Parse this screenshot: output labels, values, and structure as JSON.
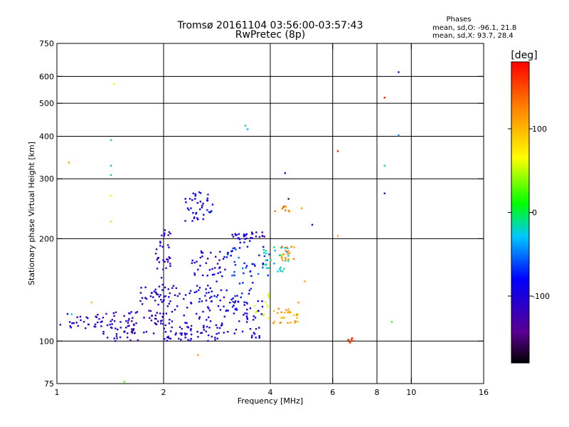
{
  "chart_data": {
    "type": "scatter",
    "title": "Tromsø 20161104 03:56:00-03:57:43",
    "subtitle": "RwPretec (8p)",
    "xlabel": "Frequency [MHz]",
    "ylabel": "Stationary phase Virtual Height [km]",
    "x_scale": "log",
    "y_scale": "log",
    "xlim": [
      1,
      16
    ],
    "ylim": [
      75,
      750
    ],
    "x_ticks": [
      1,
      2,
      4,
      6,
      8,
      10,
      16
    ],
    "x_tick_labels": [
      "1",
      "2",
      "4",
      "6",
      "8",
      "10",
      "16"
    ],
    "y_ticks": [
      75,
      100,
      200,
      300,
      400,
      500,
      600,
      750
    ],
    "y_tick_labels": [
      "75",
      "100",
      "200",
      "300",
      "400",
      "500",
      "600",
      "750"
    ],
    "x_gridlines": [
      2,
      4,
      6,
      8,
      10
    ],
    "y_gridlines": [
      100,
      200,
      300,
      400,
      500,
      600
    ],
    "grid": true,
    "stats": {
      "heading": "Phases",
      "line_o": "mean, sd,O: -96.1, 21.8",
      "line_x": "mean, sd,X:  93.7, 28.4"
    },
    "colorbar": {
      "unit_label": "[deg]",
      "range": [
        -180,
        180
      ],
      "ticks": [
        -100,
        0,
        100
      ],
      "tick_labels": [
        "-100",
        "0",
        "100"
      ],
      "placement": "right"
    },
    "clusters": [
      {
        "x": [
          1.02,
          1.35
        ],
        "y": [
          108,
          122
        ],
        "n": 30,
        "phase": -105
      },
      {
        "x": [
          1.35,
          1.7
        ],
        "y": [
          100,
          122
        ],
        "n": 45,
        "phase": -115
      },
      {
        "x": [
          1.55,
          2.0
        ],
        "y": [
          105,
          125
        ],
        "n": 35,
        "phase": -112
      },
      {
        "x": [
          2.0,
          2.9
        ],
        "y": [
          100,
          112
        ],
        "n": 55,
        "phase": -100
      },
      {
        "x": [
          2.9,
          3.8
        ],
        "y": [
          102,
          135
        ],
        "n": 50,
        "phase": -95
      },
      {
        "x": [
          1.9,
          2.8
        ],
        "y": [
          112,
          150
        ],
        "n": 55,
        "phase": -92
      },
      {
        "x": [
          2.6,
          3.6
        ],
        "y": [
          118,
          150
        ],
        "n": 40,
        "phase": -85
      },
      {
        "x": [
          1.7,
          2.1
        ],
        "y": [
          128,
          145
        ],
        "n": 30,
        "phase": -108
      },
      {
        "x": [
          1.9,
          2.1
        ],
        "y": [
          150,
          215
        ],
        "n": 35,
        "phase": -110
      },
      {
        "x": [
          2.4,
          3.0
        ],
        "y": [
          155,
          185
        ],
        "n": 35,
        "phase": -98
      },
      {
        "x": [
          3.0,
          4.0
        ],
        "y": [
          155,
          190
        ],
        "n": 40,
        "phase": -70
      },
      {
        "x": [
          3.1,
          3.5
        ],
        "y": [
          195,
          208
        ],
        "n": 20,
        "phase": -100
      },
      {
        "x": [
          2.3,
          2.75
        ],
        "y": [
          225,
          275
        ],
        "n": 40,
        "phase": -90
      },
      {
        "x": [
          3.5,
          3.9
        ],
        "y": [
          200,
          210
        ],
        "n": 12,
        "phase": -110
      },
      {
        "x": [
          3.8,
          4.5
        ],
        "y": [
          160,
          190
        ],
        "n": 30,
        "phase": -20
      },
      {
        "x": [
          4.0,
          4.8
        ],
        "y": [
          113,
          125
        ],
        "n": 30,
        "phase": 110
      },
      {
        "x": [
          4.3,
          4.7
        ],
        "y": [
          170,
          190
        ],
        "n": 18,
        "phase": 120
      },
      {
        "x": [
          4.1,
          4.6
        ],
        "y": [
          240,
          250
        ],
        "n": 10,
        "phase": 120
      },
      {
        "x": [
          3.6,
          4.0
        ],
        "y": [
          115,
          140
        ],
        "n": 12,
        "phase": 60
      },
      {
        "x": [
          6.5,
          6.9
        ],
        "y": [
          99,
          103
        ],
        "n": 8,
        "phase": 160
      }
    ],
    "outliers": [
      {
        "x": 1.45,
        "y": 570,
        "phase": 70
      },
      {
        "x": 1.42,
        "y": 390,
        "phase": -10
      },
      {
        "x": 1.42,
        "y": 328,
        "phase": -30
      },
      {
        "x": 1.42,
        "y": 308,
        "phase": -20
      },
      {
        "x": 1.42,
        "y": 268,
        "phase": 60
      },
      {
        "x": 1.42,
        "y": 225,
        "phase": 80
      },
      {
        "x": 1.08,
        "y": 335,
        "phase": 110
      },
      {
        "x": 1.1,
        "y": 120,
        "phase": -20
      },
      {
        "x": 1.25,
        "y": 130,
        "phase": 100
      },
      {
        "x": 1.55,
        "y": 76,
        "phase": 30
      },
      {
        "x": 2.5,
        "y": 91,
        "phase": 110
      },
      {
        "x": 3.4,
        "y": 430,
        "phase": -10
      },
      {
        "x": 3.45,
        "y": 420,
        "phase": -30
      },
      {
        "x": 4.4,
        "y": 312,
        "phase": -100
      },
      {
        "x": 4.5,
        "y": 262,
        "phase": -150
      },
      {
        "x": 4.9,
        "y": 246,
        "phase": 110
      },
      {
        "x": 5.25,
        "y": 220,
        "phase": -110
      },
      {
        "x": 6.2,
        "y": 362,
        "phase": 170
      },
      {
        "x": 6.2,
        "y": 204,
        "phase": 110
      },
      {
        "x": 8.4,
        "y": 520,
        "phase": 170
      },
      {
        "x": 8.4,
        "y": 328,
        "phase": -20
      },
      {
        "x": 8.4,
        "y": 272,
        "phase": -140
      },
      {
        "x": 9.2,
        "y": 618,
        "phase": -100
      },
      {
        "x": 9.2,
        "y": 403,
        "phase": -40
      },
      {
        "x": 8.8,
        "y": 114,
        "phase": 20
      },
      {
        "x": 5.0,
        "y": 150,
        "phase": 110
      },
      {
        "x": 4.8,
        "y": 130,
        "phase": 110
      }
    ]
  }
}
